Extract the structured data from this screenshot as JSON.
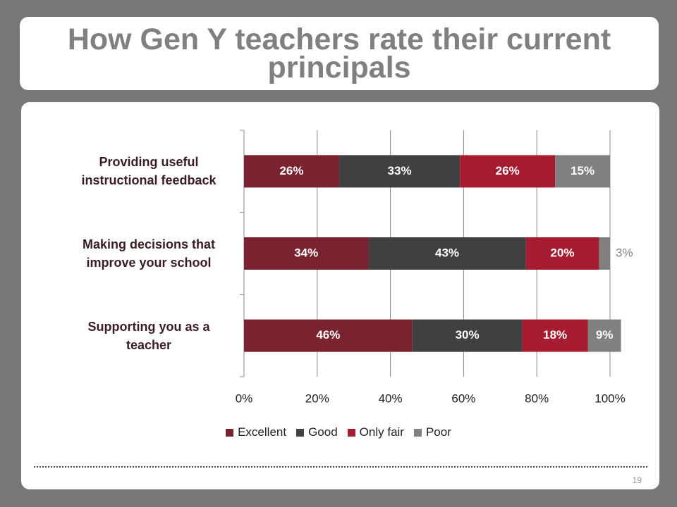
{
  "chart_data": {
    "type": "stacked-barh",
    "title": "How Gen Y teachers rate their current principals",
    "categories": [
      "Providing useful instructional feedback",
      "Making decisions that improve your school",
      "Supporting you as a teacher"
    ],
    "series": [
      {
        "name": "Excellent",
        "color": "#7b2230",
        "values": [
          26,
          34,
          46
        ],
        "value_labels": [
          "26%",
          "34%",
          "46%"
        ]
      },
      {
        "name": "Good",
        "color": "#404040",
        "values": [
          33,
          43,
          30
        ],
        "value_labels": [
          "33%",
          "43%",
          "30%"
        ]
      },
      {
        "name": "Only fair",
        "color": "#a51c30",
        "values": [
          26,
          20,
          18
        ],
        "value_labels": [
          "26%",
          "20%",
          "18%"
        ]
      },
      {
        "name": "Poor",
        "color": "#808080",
        "values": [
          15,
          3,
          9
        ],
        "value_labels": [
          "15%",
          "3%",
          "9%"
        ]
      }
    ],
    "xlim": [
      0,
      100
    ],
    "xticks": [
      {
        "value": 0,
        "label": "0%"
      },
      {
        "value": 20,
        "label": "20%"
      },
      {
        "value": 40,
        "label": "40%"
      },
      {
        "value": 60,
        "label": "60%"
      },
      {
        "value": 80,
        "label": "80%"
      },
      {
        "value": 100,
        "label": "100%"
      }
    ],
    "grid": true,
    "legend": "bottom"
  },
  "page_number": "19"
}
